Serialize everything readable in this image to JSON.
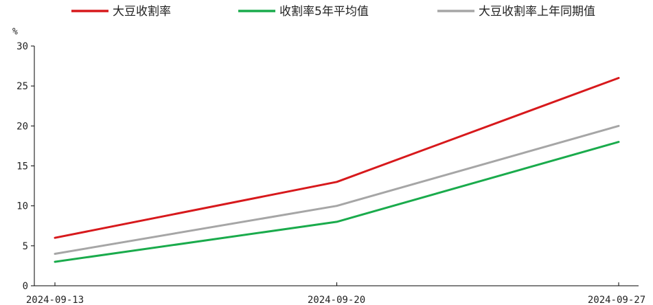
{
  "chart_data": {
    "type": "line",
    "ylabel": "%",
    "ylim": [
      0,
      30
    ],
    "yticks": [
      0,
      5,
      10,
      15,
      20,
      25,
      30
    ],
    "x": [
      "2024-09-13",
      "2024-09-20",
      "2024-09-27"
    ],
    "grid": false,
    "legend_position": "top",
    "series": [
      {
        "name": "大豆收割率",
        "color": "#d7191c",
        "values": [
          6,
          13,
          26
        ]
      },
      {
        "name": "收割率5年平均值",
        "color": "#1aab4c",
        "values": [
          3,
          8,
          18
        ]
      },
      {
        "name": "大豆收割率上年同期值",
        "color": "#a6a6a6",
        "values": [
          4,
          10,
          20
        ]
      }
    ]
  }
}
